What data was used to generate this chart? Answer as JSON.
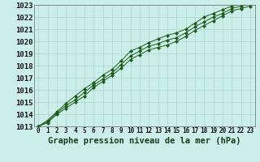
{
  "title": "Graphe pression niveau de la mer (hPa)",
  "background_color": "#cceee8",
  "grid_color": "#aad4cc",
  "line_color": "#1a5c1a",
  "marker_color": "#1a5c1a",
  "xlim": [
    -0.5,
    23.5
  ],
  "ylim": [
    1013,
    1023
  ],
  "xticks": [
    0,
    1,
    2,
    3,
    4,
    5,
    6,
    7,
    8,
    9,
    10,
    11,
    12,
    13,
    14,
    15,
    16,
    17,
    18,
    19,
    20,
    21,
    22,
    23
  ],
  "yticks": [
    1013,
    1014,
    1015,
    1016,
    1017,
    1018,
    1019,
    1020,
    1021,
    1022,
    1023
  ],
  "series": [
    [
      1013.0,
      1013.3,
      1014.0,
      1014.5,
      1015.0,
      1015.5,
      1016.2,
      1016.7,
      1017.2,
      1017.8,
      1018.5,
      1018.9,
      1019.3,
      1019.5,
      1019.7,
      1020.0,
      1020.4,
      1020.9,
      1021.3,
      1021.7,
      1022.1,
      1022.5,
      1022.7,
      1022.9
    ],
    [
      1013.0,
      1013.4,
      1014.1,
      1014.7,
      1015.2,
      1015.8,
      1016.4,
      1016.9,
      1017.4,
      1018.1,
      1018.8,
      1019.2,
      1019.6,
      1019.8,
      1020.1,
      1020.3,
      1020.7,
      1021.2,
      1021.6,
      1022.0,
      1022.3,
      1022.7,
      1022.9,
      1023.1
    ],
    [
      1013.0,
      1013.5,
      1014.2,
      1014.9,
      1015.5,
      1016.1,
      1016.6,
      1017.2,
      1017.7,
      1018.4,
      1019.2,
      1019.5,
      1019.9,
      1020.2,
      1020.5,
      1020.7,
      1021.0,
      1021.5,
      1022.0,
      1022.3,
      1022.6,
      1022.9,
      1023.1,
      1023.2
    ]
  ],
  "linewidth": 0.7,
  "markersize": 2.2,
  "xlabel_fontsize": 7.5,
  "ytick_fontsize": 6.5,
  "xtick_fontsize": 5.5
}
